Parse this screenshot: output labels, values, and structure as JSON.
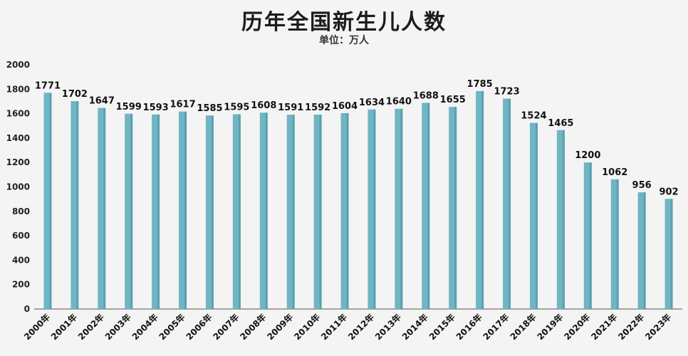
{
  "header": {
    "title": "历年全国新生儿人数",
    "subtitle": "单位：万人"
  },
  "colors": {
    "bar": "#6fb5c4",
    "bar_shadow": "#4a8f9f",
    "axis": "#555555"
  },
  "chart_data": {
    "type": "bar",
    "title": "历年全国新生儿人数",
    "subtitle": "单位：万人",
    "categories": [
      "2000年",
      "2001年",
      "2002年",
      "2003年",
      "2004年",
      "2005年",
      "2006年",
      "2007年",
      "2008年",
      "2009年",
      "2010年",
      "2011年",
      "2012年",
      "2013年",
      "2014年",
      "2015年",
      "2016年",
      "2017年",
      "2018年",
      "2019年",
      "2020年",
      "2021年",
      "2022年",
      "2023年"
    ],
    "values": [
      1771,
      1702,
      1647,
      1599,
      1593,
      1617,
      1585,
      1595,
      1608,
      1591,
      1592,
      1604,
      1634,
      1640,
      1688,
      1655,
      1785,
      1723,
      1524,
      1465,
      1200,
      1062,
      956,
      902
    ],
    "ylim": [
      0,
      2000
    ],
    "yticks": [
      0,
      200,
      400,
      600,
      800,
      1000,
      1200,
      1400,
      1600,
      1800,
      2000
    ],
    "grid": false,
    "legend": "none"
  }
}
